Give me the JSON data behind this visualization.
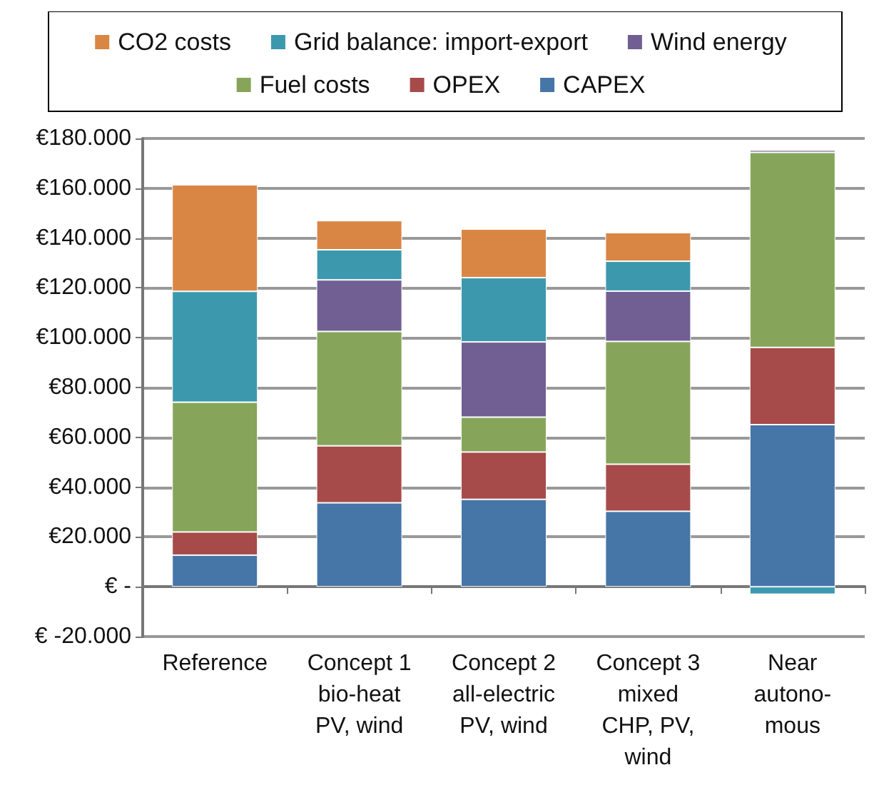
{
  "chart_data": {
    "type": "bar",
    "stacked": true,
    "categories": [
      "Reference",
      "Concept 1\nbio-heat\nPV, wind",
      "Concept 2\nall-electric\nPV, wind",
      "Concept 3\nmixed\nCHP, PV,\nwind",
      "Near\nautono-\nmous"
    ],
    "series": [
      {
        "name": "CAPEX",
        "color": "#4675a8",
        "values": [
          12700,
          33700,
          35100,
          30300,
          65100
        ]
      },
      {
        "name": "OPEX",
        "color": "#a64b4a",
        "values": [
          9300,
          22900,
          19000,
          18900,
          31000
        ]
      },
      {
        "name": "Fuel costs",
        "color": "#86a55a",
        "values": [
          52100,
          45900,
          14000,
          49300,
          78300
        ]
      },
      {
        "name": "Wind energy",
        "color": "#715e93",
        "values": [
          0,
          20700,
          30200,
          20200,
          900
        ]
      },
      {
        "name": "Grid balance: import-export",
        "color": "#3c99ad",
        "values": [
          44500,
          12100,
          25800,
          12000,
          -3000
        ]
      },
      {
        "name": "CO2 costs",
        "color": "#d98645",
        "values": [
          42800,
          11700,
          19500,
          11500,
          0
        ]
      }
    ],
    "ylim": [
      -20000,
      180000
    ],
    "yticks": [
      {
        "value": -20000,
        "label": "€ -20.000"
      },
      {
        "value": 0,
        "label": "€ -"
      },
      {
        "value": 20000,
        "label": "€20.000"
      },
      {
        "value": 40000,
        "label": "€40.000"
      },
      {
        "value": 60000,
        "label": "€60.000"
      },
      {
        "value": 80000,
        "label": "€80.000"
      },
      {
        "value": 100000,
        "label": "€100.000"
      },
      {
        "value": 120000,
        "label": "€120.000"
      },
      {
        "value": 140000,
        "label": "€140.000"
      },
      {
        "value": 160000,
        "label": "€160.000"
      },
      {
        "value": 180000,
        "label": "€180.000"
      }
    ],
    "grid": "y",
    "legend": "top"
  }
}
